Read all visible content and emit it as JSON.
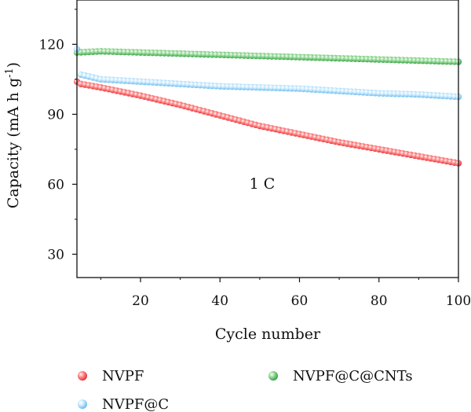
{
  "chart_data": {
    "type": "scatter",
    "xlabel": "Cycle number",
    "ylabel_main": "Capacity (mA h g",
    "ylabel_sup": "-1",
    "ylabel_close": ")",
    "xlim": [
      4,
      100
    ],
    "ylim": [
      20,
      139
    ],
    "x_ticks": [
      20,
      40,
      60,
      80,
      100
    ],
    "y_ticks": [
      30,
      60,
      90,
      120
    ],
    "annotation": {
      "text": "1 C",
      "x": 50,
      "y": 64
    },
    "grid": false,
    "legend_position": "bottom",
    "x": {
      "start": 4,
      "end": 100,
      "step": 1
    },
    "series": [
      {
        "name": "NVPF",
        "color": "#e8282b",
        "light": "#ff9a9a",
        "points": [
          [
            4,
            104
          ],
          [
            5,
            103
          ],
          [
            10,
            101.5
          ],
          [
            20,
            98
          ],
          [
            30,
            94
          ],
          [
            40,
            89.5
          ],
          [
            50,
            85
          ],
          [
            60,
            81.5
          ],
          [
            70,
            78
          ],
          [
            80,
            75
          ],
          [
            90,
            72
          ],
          [
            100,
            69
          ]
        ]
      },
      {
        "name": "NVPF@C",
        "color": "#63b8ec",
        "light": "#d6efff",
        "points": [
          [
            4,
            118
          ],
          [
            5,
            107
          ],
          [
            10,
            105
          ],
          [
            20,
            104
          ],
          [
            30,
            103
          ],
          [
            40,
            102
          ],
          [
            50,
            101.5
          ],
          [
            60,
            101
          ],
          [
            70,
            100
          ],
          [
            80,
            99
          ],
          [
            90,
            98.5
          ],
          [
            100,
            97.5
          ]
        ]
      },
      {
        "name": "NVPF@C@CNTs",
        "color": "#2e9e3e",
        "light": "#a5e0a5",
        "points": [
          [
            4,
            116.5
          ],
          [
            10,
            117
          ],
          [
            20,
            116.5
          ],
          [
            30,
            116
          ],
          [
            40,
            115.5
          ],
          [
            50,
            115
          ],
          [
            60,
            114.5
          ],
          [
            70,
            114
          ],
          [
            80,
            113.5
          ],
          [
            90,
            113
          ],
          [
            100,
            112.5
          ]
        ]
      }
    ]
  }
}
